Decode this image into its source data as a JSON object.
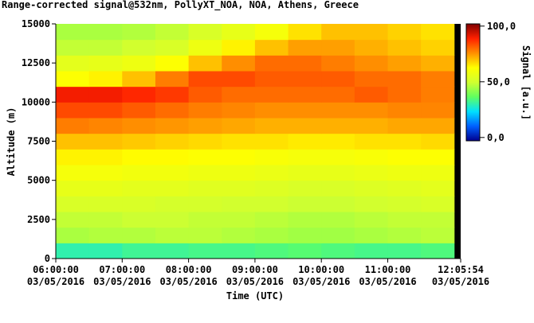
{
  "chart_data": {
    "type": "heatmap",
    "title": "Range-corrected signal@532nm, PollyXT_NOA, NOA, Athens, Greece",
    "xlabel": "Time (UTC)",
    "ylabel": "Altitude (m)",
    "colorbar_label": "Signal [a.u.]",
    "x": [
      6,
      6.5,
      7,
      7.5,
      8,
      8.5,
      9,
      9.5,
      10,
      10.5,
      11,
      11.5,
      12
    ],
    "y": [
      0,
      1000,
      2000,
      3000,
      4000,
      5000,
      6000,
      7000,
      8000,
      9000,
      10000,
      11000,
      12000,
      13000,
      14000
    ],
    "z": [
      [
        30,
        30,
        32,
        32,
        33,
        33,
        34,
        35,
        34,
        33,
        33,
        34,
        null
      ],
      [
        45,
        46,
        46,
        47,
        47,
        46,
        45,
        44,
        44,
        45,
        46,
        47,
        null
      ],
      [
        48,
        48,
        49,
        49,
        48,
        48,
        47,
        46,
        46,
        47,
        48,
        48,
        null
      ],
      [
        52,
        52,
        52,
        51,
        51,
        50,
        50,
        49,
        49,
        50,
        51,
        52,
        null
      ],
      [
        56,
        56,
        55,
        55,
        54,
        54,
        53,
        52,
        52,
        53,
        54,
        55,
        null
      ],
      [
        60,
        60,
        59,
        59,
        58,
        58,
        57,
        56,
        56,
        57,
        58,
        58,
        null
      ],
      [
        64,
        64,
        63,
        63,
        62,
        62,
        61,
        60,
        60,
        61,
        62,
        62,
        null
      ],
      [
        70,
        70,
        69,
        68,
        67,
        66,
        66,
        65,
        65,
        66,
        66,
        67,
        null
      ],
      [
        78,
        77,
        76,
        75,
        74,
        73,
        72,
        72,
        72,
        72,
        73,
        73,
        null
      ],
      [
        84,
        84,
        82,
        80,
        78,
        77,
        76,
        76,
        76,
        76,
        77,
        77,
        null
      ],
      [
        90,
        90,
        88,
        86,
        82,
        80,
        80,
        80,
        80,
        82,
        80,
        78,
        null
      ],
      [
        62,
        64,
        70,
        78,
        84,
        84,
        82,
        82,
        82,
        80,
        80,
        78,
        null
      ],
      [
        55,
        56,
        58,
        62,
        70,
        76,
        80,
        80,
        78,
        76,
        74,
        72,
        null
      ],
      [
        48,
        48,
        50,
        52,
        58,
        64,
        70,
        74,
        74,
        72,
        70,
        68,
        null
      ],
      [
        45,
        45,
        46,
        48,
        52,
        56,
        60,
        66,
        70,
        70,
        68,
        66,
        null
      ]
    ],
    "xlim": [
      6,
      12.0983
    ],
    "ylim": [
      0,
      15000
    ],
    "xticks": [
      {
        "value": 6,
        "label": [
          "06:00:00",
          "03/05/2016"
        ]
      },
      {
        "value": 7,
        "label": [
          "07:00:00",
          "03/05/2016"
        ]
      },
      {
        "value": 8,
        "label": [
          "08:00:00",
          "03/05/2016"
        ]
      },
      {
        "value": 9,
        "label": [
          "09:00:00",
          "03/05/2016"
        ]
      },
      {
        "value": 10,
        "label": [
          "10:00:00",
          "03/05/2016"
        ]
      },
      {
        "value": 11,
        "label": [
          "11:00:00",
          "03/05/2016"
        ]
      },
      {
        "value": 12.0983,
        "label": [
          "12:05:54",
          "03/05/2016"
        ]
      }
    ],
    "yticks": [
      0,
      2500,
      5000,
      7500,
      10000,
      12500,
      15000
    ],
    "clim": [
      -3,
      102
    ],
    "cticks": [
      {
        "value": 0,
        "label": "0,0"
      },
      {
        "value": 50,
        "label": "50,0"
      },
      {
        "value": 100,
        "label": "100,0"
      }
    ],
    "colormap": [
      "#00008f",
      "#0060ff",
      "#00e0ff",
      "#60ff60",
      "#d0ff30",
      "#ffff00",
      "#ff9000",
      "#ff2000",
      "#800000"
    ],
    "missing_color": "#000000"
  }
}
